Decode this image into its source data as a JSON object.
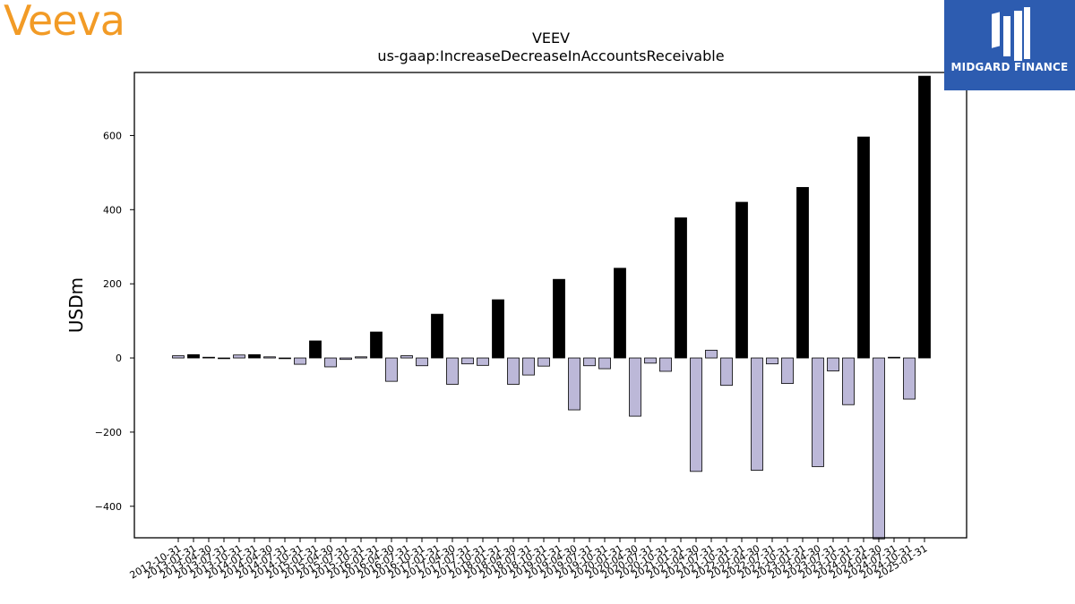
{
  "logos": {
    "left": {
      "text": "Veeva",
      "color": "#f29b26"
    },
    "right": {
      "text": "MIDGARD FINANCE",
      "bg": "#2d5cb0"
    }
  },
  "chart_data": {
    "type": "bar",
    "title": "VEEV",
    "subtitle": "us-gaap:IncreaseDecreaseInAccountsReceivable",
    "xlabel": "",
    "ylabel": "USDm",
    "ylim": [
      -485,
      770
    ],
    "yticks": [
      -400,
      -200,
      0,
      200,
      400,
      600
    ],
    "grid": false,
    "colors": {
      "q4": "#000000",
      "other": "#bcb8d8",
      "edge": "#000000"
    },
    "categories": [
      "2012-10-31",
      "2013-01-31",
      "2013-04-30",
      "2013-07-31",
      "2013-10-31",
      "2014-01-31",
      "2014-04-30",
      "2014-07-31",
      "2014-10-31",
      "2015-01-31",
      "2015-04-30",
      "2015-07-31",
      "2015-10-31",
      "2016-01-31",
      "2016-04-30",
      "2016-07-31",
      "2016-10-31",
      "2017-01-31",
      "2017-04-30",
      "2017-07-31",
      "2017-10-31",
      "2018-01-31",
      "2018-04-30",
      "2018-07-31",
      "2018-10-31",
      "2019-01-31",
      "2019-04-30",
      "2019-07-31",
      "2019-10-31",
      "2020-01-31",
      "2020-04-30",
      "2020-07-31",
      "2020-10-31",
      "2021-01-31",
      "2021-04-30",
      "2021-07-31",
      "2021-10-31",
      "2022-01-31",
      "2022-04-30",
      "2022-07-31",
      "2022-10-31",
      "2023-01-31",
      "2023-04-30",
      "2023-07-31",
      "2023-10-31",
      "2024-01-31",
      "2024-04-30",
      "2024-07-31",
      "2024-10-31",
      "2025-01-31"
    ],
    "values": [
      6,
      9,
      2,
      -1,
      8,
      9,
      3,
      -1,
      -17,
      46,
      -24,
      -4,
      3,
      70,
      -63,
      6,
      -21,
      118,
      -71,
      -16,
      -20,
      157,
      -71,
      -46,
      -22,
      212,
      -140,
      -21,
      -29,
      242,
      -157,
      -14,
      -36,
      378,
      -306,
      21,
      -74,
      420,
      -303,
      -16,
      -69,
      460,
      -293,
      -35,
      -126,
      596,
      -488,
      2,
      -111,
      760
    ]
  }
}
